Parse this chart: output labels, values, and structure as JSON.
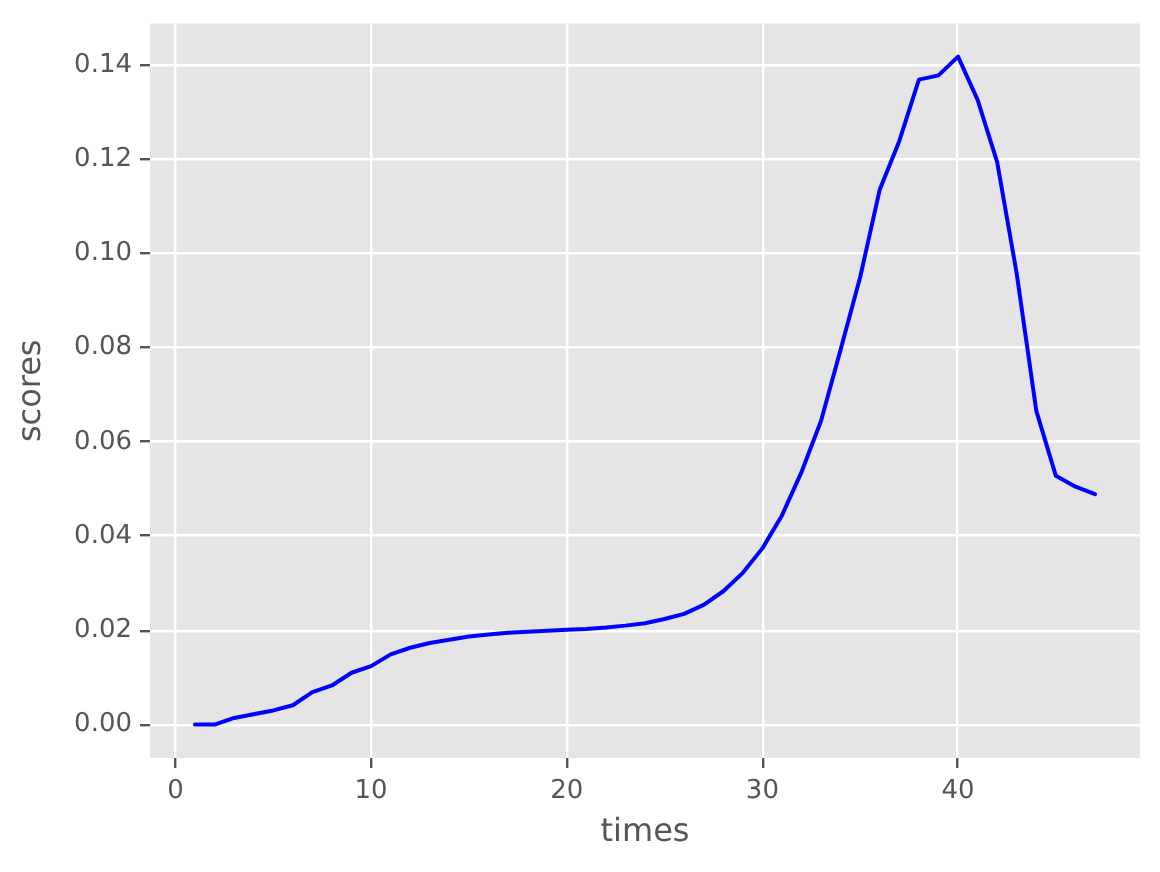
{
  "chart_data": {
    "type": "line",
    "xlabel": "times",
    "ylabel": "scores",
    "x": [
      1,
      2,
      3,
      4,
      5,
      6,
      7,
      8,
      9,
      10,
      11,
      12,
      13,
      14,
      15,
      16,
      17,
      18,
      19,
      20,
      21,
      22,
      23,
      24,
      25,
      26,
      27,
      28,
      29,
      30,
      31,
      32,
      33,
      34,
      35,
      36,
      37,
      38,
      39,
      40,
      41,
      42,
      43,
      44,
      45,
      46,
      47
    ],
    "series": [
      {
        "color": "#0000ff",
        "values": [
          0.0,
          0.0,
          0.0014,
          0.0022,
          0.003,
          0.0041,
          0.0069,
          0.0083,
          0.011,
          0.0124,
          0.0149,
          0.0163,
          0.0173,
          0.018,
          0.0187,
          0.0191,
          0.0195,
          0.0197,
          0.0199,
          0.0201,
          0.0203,
          0.0206,
          0.021,
          0.0215,
          0.0224,
          0.0235,
          0.0254,
          0.0283,
          0.0322,
          0.0374,
          0.0444,
          0.0536,
          0.0645,
          0.0796,
          0.095,
          0.1136,
          0.1239,
          0.1369,
          0.1378,
          0.1418,
          0.1326,
          0.1194,
          0.0957,
          0.0666,
          0.0528,
          0.0505,
          0.0489
        ]
      }
    ],
    "xlim": [
      -1.3,
      49.3
    ],
    "ylim": [
      -0.0071,
      0.1488
    ],
    "xticks": [
      0,
      10,
      20,
      30,
      40
    ],
    "yticks": [
      {
        "value": 0,
        "label": "0.00"
      },
      0.02,
      0.04,
      0.06,
      0.08,
      {
        "value": 0.1,
        "label": "0.10"
      },
      0.12,
      0.14
    ],
    "grid": true,
    "marker": "none",
    "line_style": "solid"
  }
}
